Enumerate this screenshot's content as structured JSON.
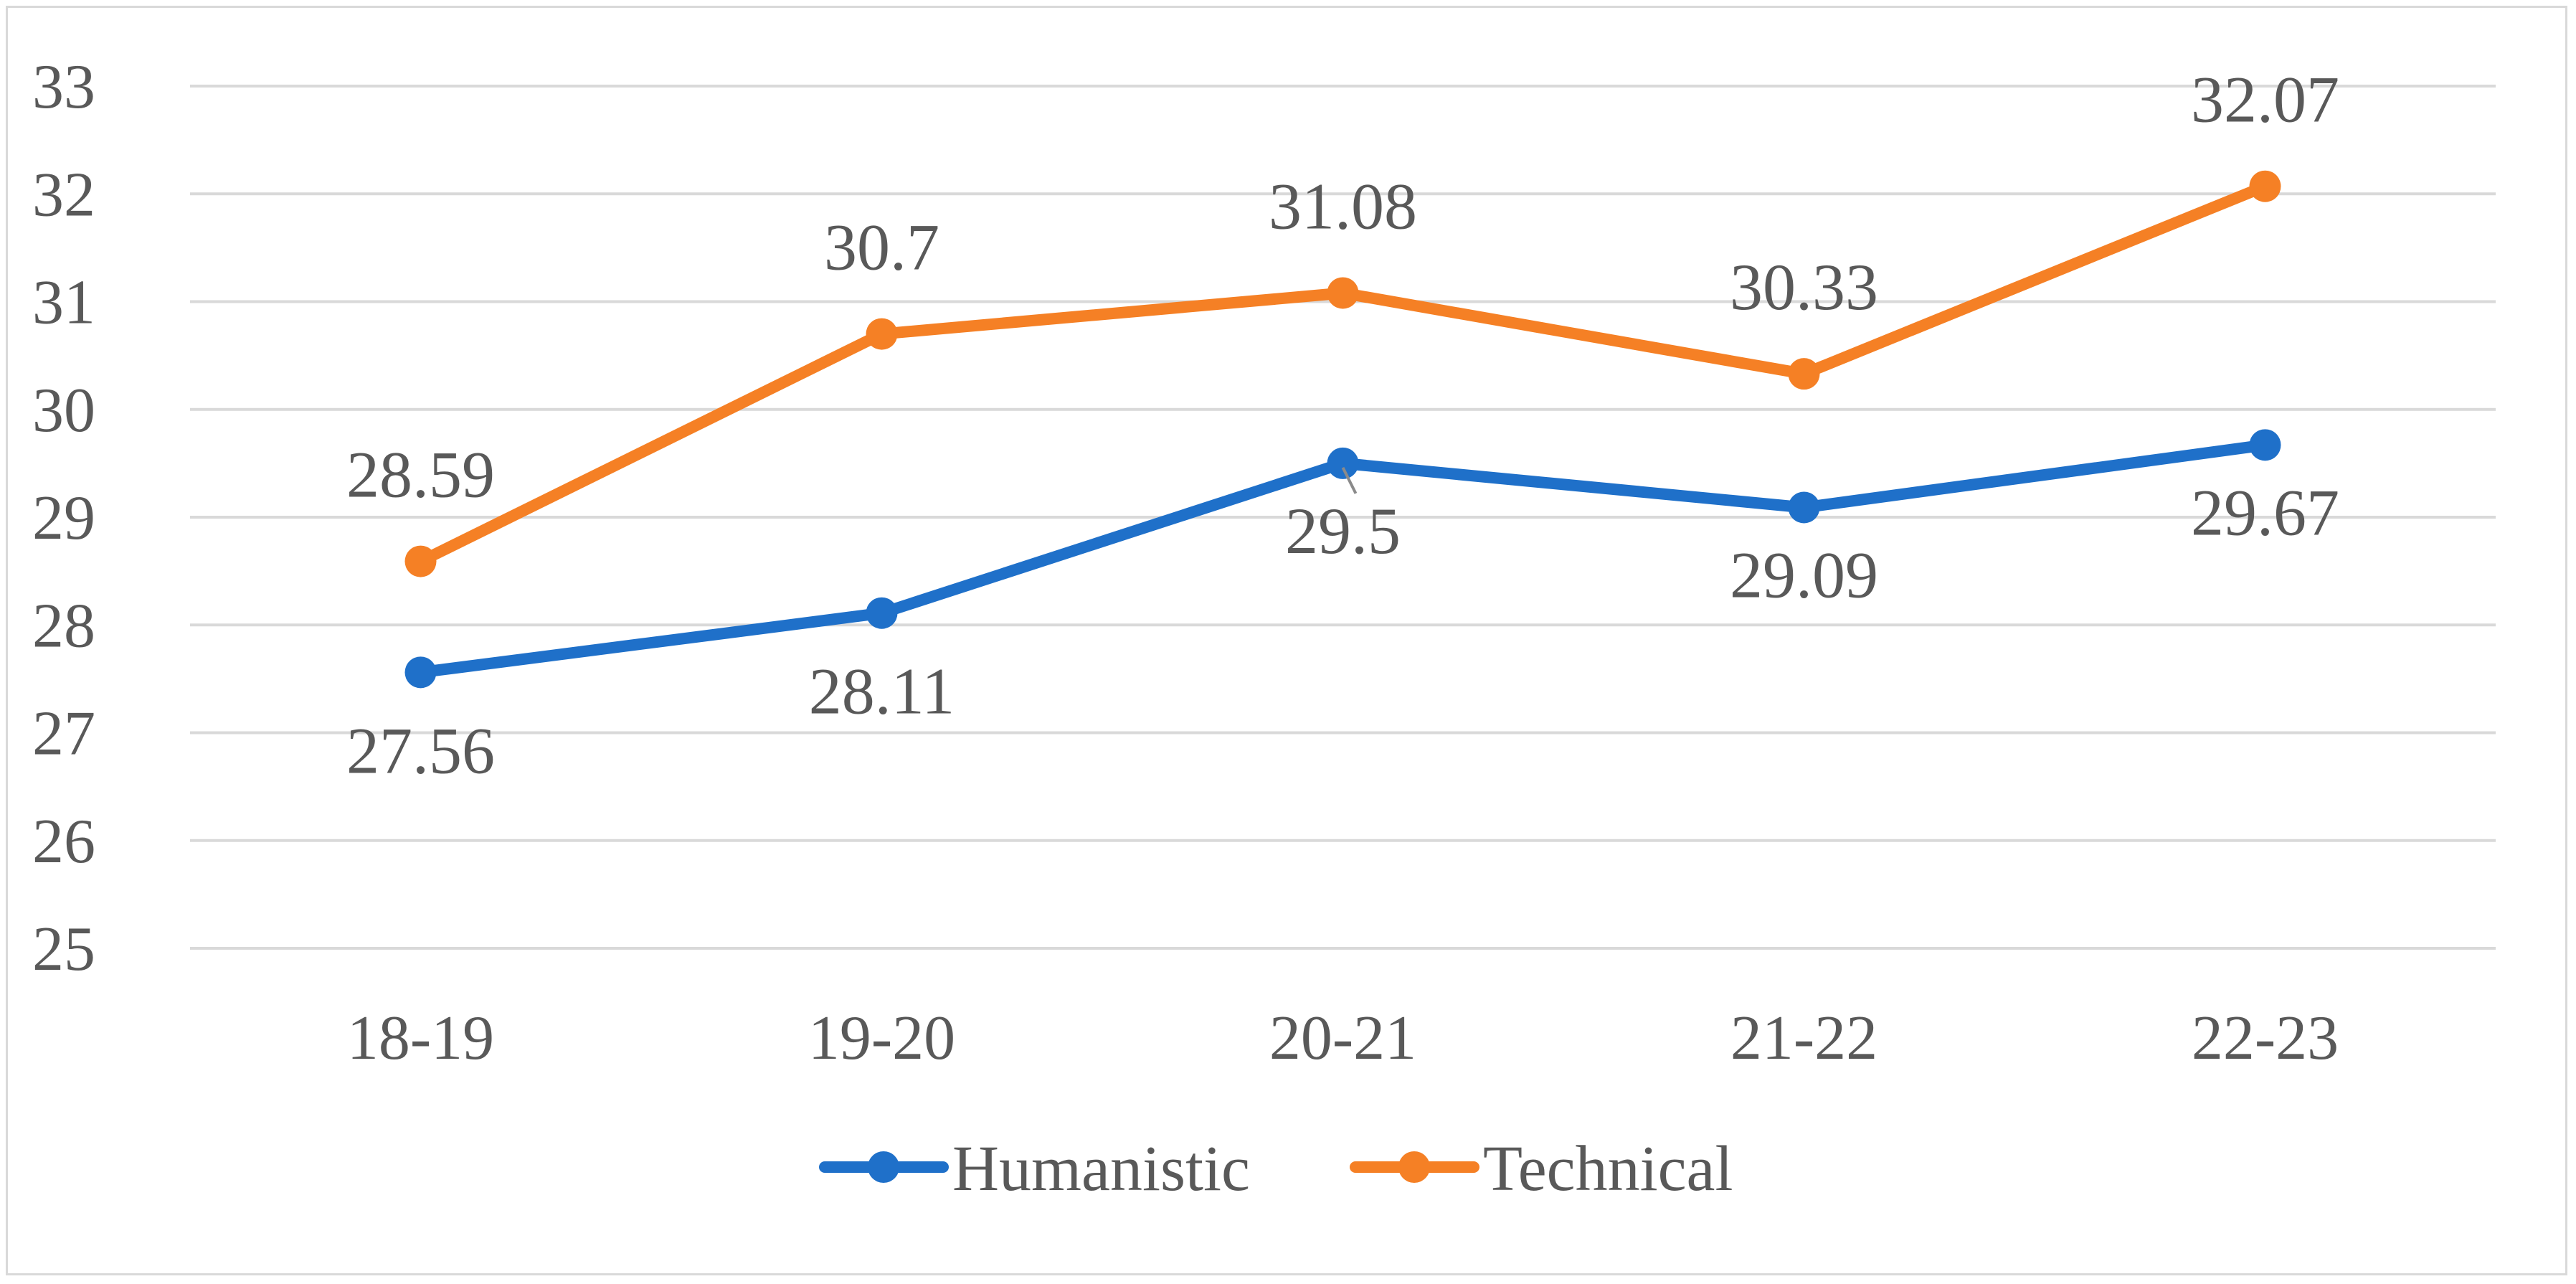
{
  "chart_data": {
    "type": "line",
    "categories": [
      "18-19",
      "19-20",
      "20-21",
      "21-22",
      "22-23"
    ],
    "y_ticks": [
      "25",
      "26",
      "27",
      "28",
      "29",
      "30",
      "31",
      "32",
      "33"
    ],
    "ylim": [
      25,
      33
    ],
    "grid": true,
    "legend_position": "bottom",
    "series": [
      {
        "name": "Humanistic",
        "color": "#1f70c9",
        "values": [
          27.56,
          28.11,
          29.5,
          29.09,
          29.67
        ],
        "labels": [
          "27.56",
          "28.11",
          "29.5",
          "29.09",
          "29.67"
        ]
      },
      {
        "name": "Technical",
        "color": "#f58025",
        "values": [
          28.59,
          30.7,
          31.08,
          30.33,
          32.07
        ],
        "labels": [
          "28.59",
          "30.7",
          "31.08",
          "30.33",
          "32.07"
        ]
      }
    ]
  }
}
